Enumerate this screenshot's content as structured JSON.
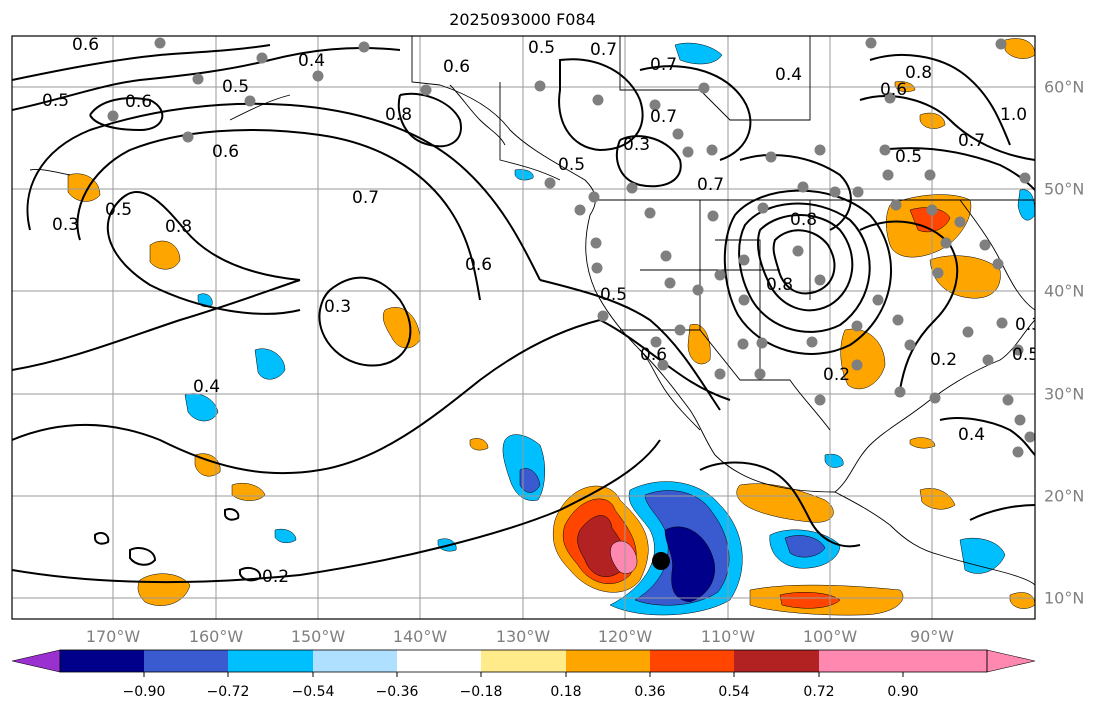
{
  "title": "2025093000 F084",
  "lon_labels": [
    "170°W",
    "160°W",
    "150°W",
    "140°W",
    "130°W",
    "120°W",
    "110°W",
    "100°W",
    "90°W"
  ],
  "lat_labels": [
    "60°N",
    "50°N",
    "40°N",
    "30°N",
    "20°N",
    "10°N"
  ],
  "colorbar": {
    "ticks": [
      "−0.90",
      "−0.72",
      "−0.54",
      "−0.36",
      "−0.18",
      "0.18",
      "0.36",
      "0.54",
      "0.72",
      "0.90"
    ],
    "colors": [
      "#9b30d0",
      "#00008b",
      "#3a5bcf",
      "#00bfff",
      "#b0e0ff",
      "#ffffff",
      "#ffeb8a",
      "#ffa500",
      "#ff4500",
      "#b22222",
      "#ff88b0"
    ]
  },
  "contour_labels": [
    "0.6",
    "0.4",
    "0.5",
    "0.6",
    "0.5",
    "0.6",
    "0.8",
    "0.7",
    "0.3",
    "0.5",
    "0.8",
    "0.7",
    "0.6",
    "0.3",
    "0.4",
    "0.5",
    "0.6",
    "0.5",
    "0.7",
    "0.3",
    "0.7",
    "0.8",
    "0.7",
    "0.6",
    "0.4",
    "0.6",
    "0.8",
    "0.5",
    "0.7",
    "1.0",
    "0.3",
    "0.2",
    "0.4",
    "0.5",
    "0.2",
    "0.2",
    "0.8",
    "0.5"
  ],
  "center_marker": "black-dot"
}
